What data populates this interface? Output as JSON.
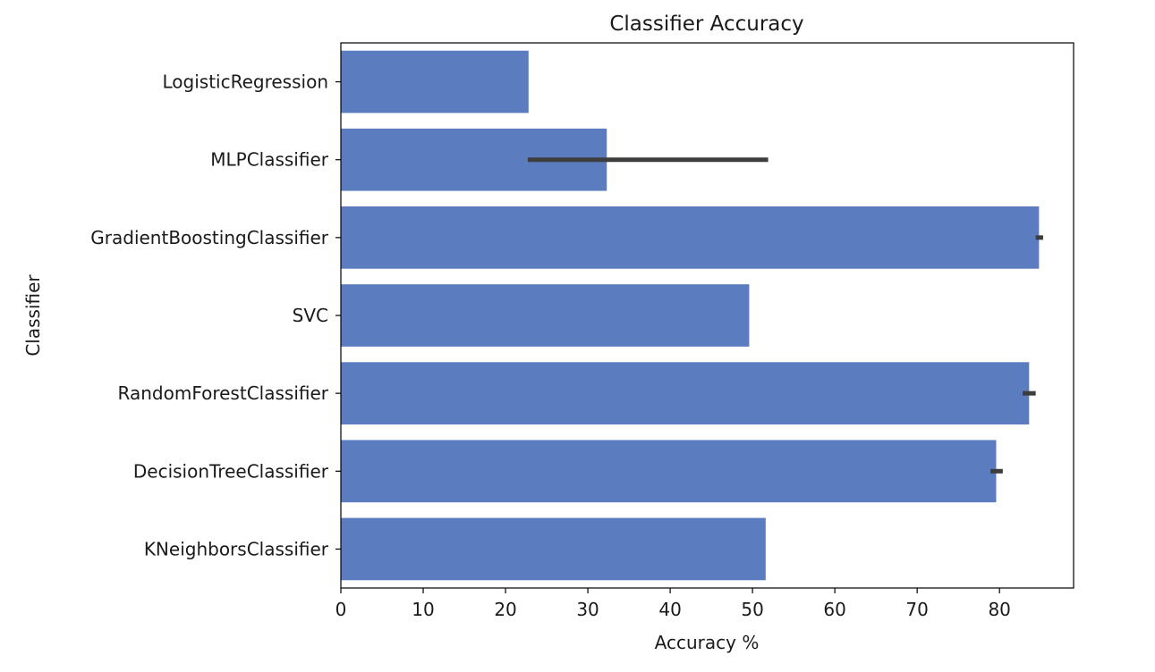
{
  "chart_data": {
    "type": "bar",
    "orientation": "horizontal",
    "title": "Classifier Accuracy",
    "xlabel": "Accuracy %",
    "ylabel": "Classifier",
    "xlim": [
      0,
      89
    ],
    "xticks": [
      0,
      10,
      20,
      30,
      40,
      50,
      60,
      70,
      80
    ],
    "grid": false,
    "bar_color": "#5b7dc0",
    "errorbar_color": "#3d3d3d",
    "categories": [
      "LogisticRegression",
      "MLPClassifier",
      "GradientBoostingClassifier",
      "SVC",
      "RandomForestClassifier",
      "DecisionTreeClassifier",
      "KNeighborsClassifier"
    ],
    "values": [
      22.8,
      32.3,
      84.8,
      49.6,
      83.6,
      79.6,
      51.6
    ],
    "error_low": [
      null,
      22.7,
      84.4,
      null,
      82.8,
      78.9,
      null
    ],
    "error_high": [
      null,
      51.9,
      85.3,
      null,
      84.4,
      80.4,
      null
    ]
  }
}
